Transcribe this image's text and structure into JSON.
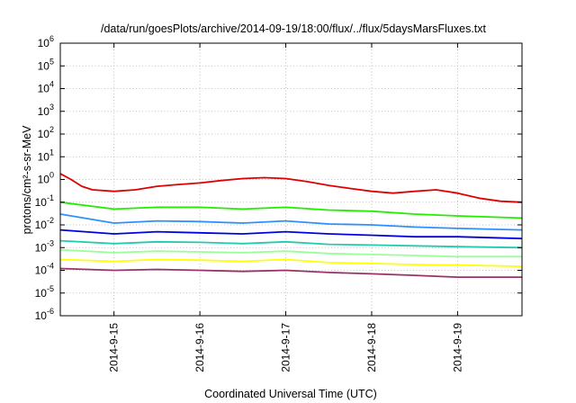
{
  "chart_data": {
    "type": "line",
    "title": "/data/run/goesPlots/archive/2014-09-19/18:00/flux/../flux/5daysMarsFluxes.txt",
    "xlabel": "Coordinated Universal Time (UTC)",
    "ylabel": "protons/cm²-s-sr-MeV",
    "y_scale": "log",
    "ylim": [
      1e-06,
      1000000.0
    ],
    "y_ticks": [
      {
        "value": 1e-06,
        "base": "10",
        "exp": "-6"
      },
      {
        "value": 1e-05,
        "base": "10",
        "exp": "-5"
      },
      {
        "value": 0.0001,
        "base": "10",
        "exp": "-4"
      },
      {
        "value": 0.001,
        "base": "10",
        "exp": "-3"
      },
      {
        "value": 0.01,
        "base": "10",
        "exp": "-2"
      },
      {
        "value": 0.1,
        "base": "10",
        "exp": "-1"
      },
      {
        "value": 1,
        "base": "10",
        "exp": "0"
      },
      {
        "value": 10,
        "base": "10",
        "exp": "1"
      },
      {
        "value": 100,
        "base": "10",
        "exp": "2"
      },
      {
        "value": 1000,
        "base": "10",
        "exp": "3"
      },
      {
        "value": 10000,
        "base": "10",
        "exp": "4"
      },
      {
        "value": 100000,
        "base": "10",
        "exp": "5"
      },
      {
        "value": 1000000,
        "base": "10",
        "exp": "6"
      }
    ],
    "xlim": [
      "2014-09-14T09:00",
      "2014-09-19T18:00"
    ],
    "x_ticks": [
      "2014-9-15",
      "2014-9-16",
      "2014-9-17",
      "2014-9-18",
      "2014-9-19"
    ],
    "grid": true,
    "series": [
      {
        "color": "#e00000",
        "points": [
          [
            "2014-09-14T09:00",
            1.8
          ],
          [
            "2014-09-14T12:00",
            1.0
          ],
          [
            "2014-09-14T15:00",
            0.5
          ],
          [
            "2014-09-14T18:00",
            0.35
          ],
          [
            "2014-09-15T00:00",
            0.3
          ],
          [
            "2014-09-15T06:00",
            0.35
          ],
          [
            "2014-09-15T12:00",
            0.5
          ],
          [
            "2014-09-15T18:00",
            0.6
          ],
          [
            "2014-09-16T00:00",
            0.7
          ],
          [
            "2014-09-16T06:00",
            0.9
          ],
          [
            "2014-09-16T12:00",
            1.1
          ],
          [
            "2014-09-16T18:00",
            1.2
          ],
          [
            "2014-09-17T00:00",
            1.1
          ],
          [
            "2014-09-17T06:00",
            0.8
          ],
          [
            "2014-09-17T12:00",
            0.55
          ],
          [
            "2014-09-17T18:00",
            0.4
          ],
          [
            "2014-09-18T00:00",
            0.3
          ],
          [
            "2014-09-18T06:00",
            0.25
          ],
          [
            "2014-09-18T12:00",
            0.3
          ],
          [
            "2014-09-18T18:00",
            0.35
          ],
          [
            "2014-09-19T00:00",
            0.25
          ],
          [
            "2014-09-19T06:00",
            0.15
          ],
          [
            "2014-09-19T12:00",
            0.11
          ],
          [
            "2014-09-19T18:00",
            0.1
          ]
        ]
      },
      {
        "color": "#22ee00",
        "points": [
          [
            "2014-09-14T09:00",
            0.1
          ],
          [
            "2014-09-15T00:00",
            0.05
          ],
          [
            "2014-09-15T12:00",
            0.06
          ],
          [
            "2014-09-16T00:00",
            0.06
          ],
          [
            "2014-09-16T12:00",
            0.05
          ],
          [
            "2014-09-17T00:00",
            0.06
          ],
          [
            "2014-09-17T12:00",
            0.045
          ],
          [
            "2014-09-18T00:00",
            0.04
          ],
          [
            "2014-09-18T12:00",
            0.03
          ],
          [
            "2014-09-19T00:00",
            0.025
          ],
          [
            "2014-09-19T18:00",
            0.02
          ]
        ]
      },
      {
        "color": "#2f8fff",
        "points": [
          [
            "2014-09-14T09:00",
            0.03
          ],
          [
            "2014-09-15T00:00",
            0.012
          ],
          [
            "2014-09-15T12:00",
            0.015
          ],
          [
            "2014-09-16T00:00",
            0.014
          ],
          [
            "2014-09-16T12:00",
            0.012
          ],
          [
            "2014-09-17T00:00",
            0.015
          ],
          [
            "2014-09-17T12:00",
            0.011
          ],
          [
            "2014-09-18T00:00",
            0.01
          ],
          [
            "2014-09-18T12:00",
            0.008
          ],
          [
            "2014-09-19T00:00",
            0.007
          ],
          [
            "2014-09-19T18:00",
            0.006
          ]
        ]
      },
      {
        "color": "#0000e0",
        "points": [
          [
            "2014-09-14T09:00",
            0.006
          ],
          [
            "2014-09-15T00:00",
            0.004
          ],
          [
            "2014-09-15T12:00",
            0.005
          ],
          [
            "2014-09-16T00:00",
            0.0045
          ],
          [
            "2014-09-16T12:00",
            0.004
          ],
          [
            "2014-09-17T00:00",
            0.005
          ],
          [
            "2014-09-17T12:00",
            0.004
          ],
          [
            "2014-09-18T00:00",
            0.0035
          ],
          [
            "2014-09-18T12:00",
            0.003
          ],
          [
            "2014-09-19T00:00",
            0.003
          ],
          [
            "2014-09-19T18:00",
            0.0025
          ]
        ]
      },
      {
        "color": "#22ccaa",
        "points": [
          [
            "2014-09-14T09:00",
            0.002
          ],
          [
            "2014-09-15T00:00",
            0.0015
          ],
          [
            "2014-09-15T12:00",
            0.0018
          ],
          [
            "2014-09-16T00:00",
            0.0017
          ],
          [
            "2014-09-16T12:00",
            0.0015
          ],
          [
            "2014-09-17T00:00",
            0.0018
          ],
          [
            "2014-09-17T12:00",
            0.0014
          ],
          [
            "2014-09-18T00:00",
            0.0013
          ],
          [
            "2014-09-18T12:00",
            0.0012
          ],
          [
            "2014-09-19T00:00",
            0.0011
          ],
          [
            "2014-09-19T18:00",
            0.001
          ]
        ]
      },
      {
        "color": "#99ff99",
        "points": [
          [
            "2014-09-14T09:00",
            0.0008
          ],
          [
            "2014-09-15T00:00",
            0.0006
          ],
          [
            "2014-09-15T12:00",
            0.0007
          ],
          [
            "2014-09-16T00:00",
            0.00065
          ],
          [
            "2014-09-16T12:00",
            0.0006
          ],
          [
            "2014-09-17T00:00",
            0.0007
          ],
          [
            "2014-09-17T12:00",
            0.00055
          ],
          [
            "2014-09-18T00:00",
            0.0005
          ],
          [
            "2014-09-18T12:00",
            0.00045
          ],
          [
            "2014-09-19T00:00",
            0.0004
          ],
          [
            "2014-09-19T18:00",
            0.0004
          ]
        ]
      },
      {
        "color": "#ffff00",
        "points": [
          [
            "2014-09-14T09:00",
            0.0003
          ],
          [
            "2014-09-15T00:00",
            0.00025
          ],
          [
            "2014-09-15T12:00",
            0.0003
          ],
          [
            "2014-09-16T00:00",
            0.00028
          ],
          [
            "2014-09-16T12:00",
            0.00025
          ],
          [
            "2014-09-17T00:00",
            0.0003
          ],
          [
            "2014-09-17T12:00",
            0.00022
          ],
          [
            "2014-09-18T00:00",
            0.0002
          ],
          [
            "2014-09-18T12:00",
            0.00018
          ],
          [
            "2014-09-19T00:00",
            0.00017
          ],
          [
            "2014-09-19T18:00",
            0.00015
          ]
        ]
      },
      {
        "color": "#993366",
        "points": [
          [
            "2014-09-14T09:00",
            0.00012
          ],
          [
            "2014-09-15T00:00",
            0.0001
          ],
          [
            "2014-09-15T12:00",
            0.00011
          ],
          [
            "2014-09-16T00:00",
            0.0001
          ],
          [
            "2014-09-16T12:00",
            9e-05
          ],
          [
            "2014-09-17T00:00",
            0.0001
          ],
          [
            "2014-09-17T12:00",
            8e-05
          ],
          [
            "2014-09-18T00:00",
            7e-05
          ],
          [
            "2014-09-18T12:00",
            6e-05
          ],
          [
            "2014-09-19T00:00",
            5e-05
          ],
          [
            "2014-09-19T18:00",
            5e-05
          ]
        ]
      }
    ]
  }
}
